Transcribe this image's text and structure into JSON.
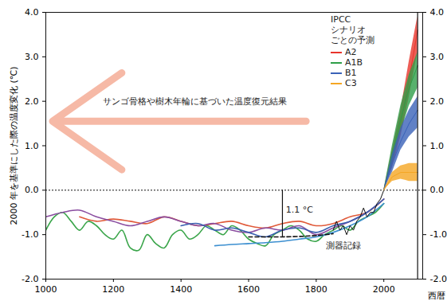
{
  "chart_data": {
    "type": "line",
    "y_label": "2000 年を基準にした際の温度変化 (℃)",
    "x_label": "西暦",
    "xlim": [
      1000,
      2115
    ],
    "xticks": [
      1000,
      1200,
      1400,
      1600,
      1800,
      2000
    ],
    "ylim": [
      -2.0,
      4.0
    ],
    "yticks": [
      {
        "value": -2.0,
        "label": "-2.0"
      },
      {
        "value": -1.0,
        "label": "-1.0"
      },
      {
        "value": 0.0,
        "label": "0.0"
      },
      {
        "value": 1.0,
        "label": "1.0"
      },
      {
        "value": 2.0,
        "label": "2.0"
      },
      {
        "value": 3.0,
        "label": "3.0"
      },
      {
        "value": 4.0,
        "label": "4.0"
      }
    ],
    "legend": "top-right",
    "legend_title": "IPCC\nシナリオ\nごとの予測",
    "series": [
      {
        "type": "line",
        "color": "#3aa54a",
        "line_style": "solid",
        "x": [
          1000,
          1025,
          1050,
          1075,
          1100,
          1125,
          1150,
          1175,
          1200,
          1225,
          1250,
          1275,
          1300,
          1325,
          1350,
          1375,
          1400,
          1425,
          1450,
          1475,
          1500,
          1525,
          1550,
          1575,
          1600,
          1625,
          1650,
          1675,
          1700,
          1725,
          1750,
          1775,
          1800,
          1825,
          1850,
          1875,
          1900,
          1925,
          1950,
          1975,
          2000
        ],
        "values": [
          -0.9,
          -0.6,
          -0.5,
          -0.7,
          -0.9,
          -0.7,
          -0.8,
          -1.0,
          -1.1,
          -0.9,
          -1.3,
          -1.35,
          -1.0,
          -1.2,
          -1.3,
          -1.0,
          -0.9,
          -1.1,
          -1.0,
          -0.8,
          -0.9,
          -1.0,
          -0.8,
          -0.9,
          -1.1,
          -1.2,
          -1.25,
          -1.0,
          -0.9,
          -0.8,
          -0.9,
          -1.1,
          -1.15,
          -1.0,
          -0.9,
          -0.8,
          -0.9,
          -0.7,
          -0.6,
          -0.5,
          -0.3
        ]
      },
      {
        "type": "line",
        "color": "#e05a3a",
        "line_style": "solid",
        "x": [
          1100,
          1150,
          1200,
          1250,
          1300,
          1350,
          1400,
          1450,
          1500,
          1550,
          1600,
          1650,
          1700,
          1750,
          1800,
          1850,
          1900,
          1950,
          2000
        ],
        "values": [
          -0.6,
          -0.7,
          -0.65,
          -0.7,
          -0.75,
          -0.6,
          -0.7,
          -0.8,
          -0.75,
          -0.7,
          -0.8,
          -0.85,
          -0.75,
          -0.7,
          -0.8,
          -0.75,
          -0.6,
          -0.5,
          -0.2
        ]
      },
      {
        "type": "line",
        "color": "#8a4da0",
        "line_style": "solid",
        "x": [
          1000,
          1050,
          1100,
          1150,
          1200,
          1250,
          1300,
          1350,
          1400,
          1450,
          1500,
          1550,
          1600,
          1650,
          1700,
          1750,
          1800,
          1850,
          1900,
          1950,
          2000
        ],
        "values": [
          -0.6,
          -0.5,
          -0.45,
          -0.6,
          -0.7,
          -0.8,
          -0.7,
          -0.6,
          -0.7,
          -0.8,
          -0.75,
          -0.9,
          -0.95,
          -0.85,
          -0.9,
          -0.8,
          -1.0,
          -0.85,
          -0.7,
          -0.5,
          -0.2
        ]
      },
      {
        "type": "line",
        "color": "#3a5fb0",
        "line_style": "solid",
        "x": [
          1400,
          1450,
          1500,
          1550,
          1600,
          1650,
          1700,
          1750,
          1800,
          1850,
          1900,
          1950,
          2000
        ],
        "values": [
          -0.8,
          -0.75,
          -0.9,
          -0.85,
          -0.95,
          -1.05,
          -0.9,
          -0.85,
          -0.95,
          -0.8,
          -0.7,
          -0.5,
          -0.2
        ]
      },
      {
        "type": "line",
        "color": "#3c8fd0",
        "line_style": "solid",
        "x": [
          1500,
          1550,
          1600,
          1650,
          1700,
          1750,
          1800,
          1850,
          1900,
          1950,
          2000
        ],
        "values": [
          -1.25,
          -1.22,
          -1.2,
          -1.18,
          -1.15,
          -1.1,
          -1.05,
          -0.95,
          -0.8,
          -0.6,
          -0.3
        ]
      },
      {
        "type": "line",
        "color": "#111111",
        "line_style": "dashed",
        "x": [
          1600,
          1650,
          1700,
          1750,
          1800,
          1850
        ],
        "values": [
          -1.05,
          -1.05,
          -1.05,
          -1.04,
          -1.02,
          -0.98
        ]
      },
      {
        "type": "line",
        "color": "#111111",
        "line_style": "solid",
        "x": [
          1850,
          1860,
          1870,
          1880,
          1890,
          1900,
          1910,
          1920,
          1930,
          1940,
          1950,
          1960,
          1970,
          1980,
          1990,
          2000
        ],
        "values": [
          -0.9,
          -0.7,
          -0.9,
          -0.8,
          -1.0,
          -0.8,
          -0.9,
          -0.7,
          -0.6,
          -0.4,
          -0.6,
          -0.5,
          -0.5,
          -0.3,
          -0.2,
          0.0
        ]
      },
      {
        "type": "area",
        "name": "A2",
        "color": "#e8342c",
        "x": [
          2000,
          2025,
          2050,
          2075,
          2100
        ],
        "values": [
          0.0,
          0.7,
          1.5,
          2.5,
          3.6
        ],
        "lower": [
          0.0,
          0.5,
          1.2,
          2.1,
          3.1
        ],
        "upper": [
          0.0,
          0.9,
          1.8,
          2.9,
          3.9
        ]
      },
      {
        "type": "area",
        "name": "A1B",
        "color": "#2e9e48",
        "x": [
          2000,
          2025,
          2050,
          2075,
          2100
        ],
        "values": [
          0.0,
          0.8,
          1.6,
          2.3,
          2.8
        ],
        "lower": [
          0.0,
          0.6,
          1.3,
          1.9,
          2.3
        ],
        "upper": [
          0.0,
          1.0,
          1.9,
          2.6,
          3.1
        ]
      },
      {
        "type": "area",
        "name": "B1",
        "color": "#3a62b8",
        "x": [
          2000,
          2025,
          2050,
          2075,
          2100
        ],
        "values": [
          0.0,
          0.6,
          1.1,
          1.5,
          1.8
        ],
        "lower": [
          0.0,
          0.4,
          0.9,
          1.2,
          1.4
        ],
        "upper": [
          0.0,
          0.8,
          1.4,
          1.8,
          2.1
        ]
      },
      {
        "type": "area",
        "name": "C3",
        "color": "#f5a623",
        "x": [
          2000,
          2025,
          2050,
          2075,
          2100
        ],
        "values": [
          0.0,
          0.3,
          0.4,
          0.4,
          0.4
        ],
        "lower": [
          0.0,
          0.2,
          0.25,
          0.2,
          0.2
        ],
        "upper": [
          0.0,
          0.4,
          0.55,
          0.6,
          0.6
        ]
      }
    ],
    "annotations": [
      {
        "text": "サンゴ骨格や樹木年輪に基づいた温度復元結果",
        "x": 1440,
        "y": 2.0
      },
      {
        "text": "1.1 °C",
        "x": 1710,
        "y": -0.45
      },
      {
        "text": "測器記録",
        "x": 1880,
        "y": -1.25
      }
    ],
    "arrows": [
      {
        "x1": 1770,
        "x2": 1020,
        "y": 1.55,
        "color": "#f6b9a6"
      }
    ],
    "rules": [
      {
        "x": 1700,
        "y1": -1.05,
        "y2": 0.0,
        "color": "#111111"
      },
      {
        "x": 2100,
        "y1": -2.0,
        "y2": 4.0,
        "color": "#111111"
      }
    ],
    "hlines": [
      {
        "y": 0.0,
        "line_style": "dotted",
        "color": "#111111"
      }
    ]
  }
}
